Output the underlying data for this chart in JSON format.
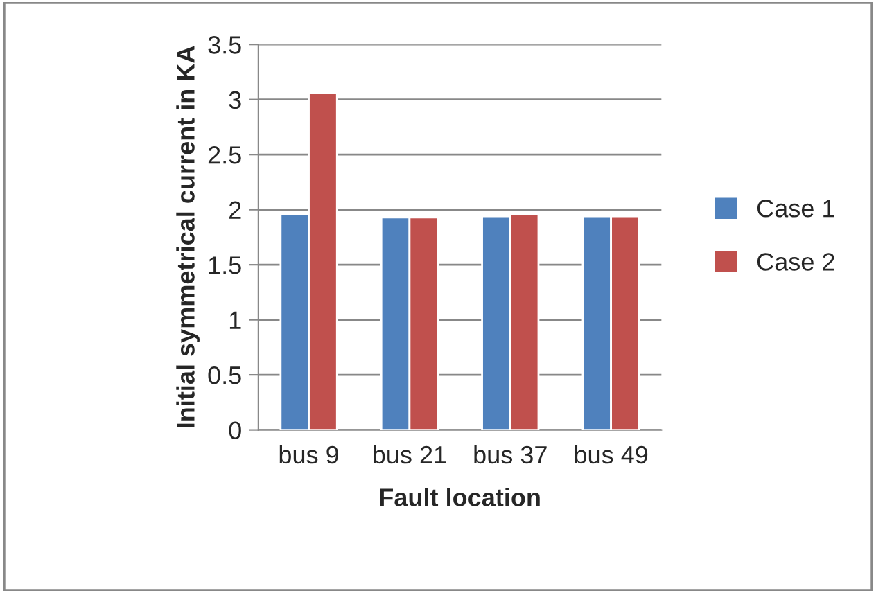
{
  "chart_data": {
    "type": "bar",
    "xlabel": "Fault location",
    "ylabel": "Initial symmetrical current in KA",
    "categories": [
      "bus 9",
      "bus 21",
      "bus 37",
      "bus 49"
    ],
    "series": [
      {
        "name": "Case 1",
        "color": "#4f81bd",
        "values": [
          1.96,
          1.93,
          1.94,
          1.94
        ]
      },
      {
        "name": "Case 2",
        "color": "#c0504d",
        "values": [
          3.06,
          1.93,
          1.96,
          1.94
        ]
      }
    ],
    "ylim": [
      0,
      3.5
    ],
    "yticks": [
      0,
      0.5,
      1,
      1.5,
      2,
      2.5,
      3,
      3.5
    ],
    "grid": "y",
    "legend": "right"
  }
}
